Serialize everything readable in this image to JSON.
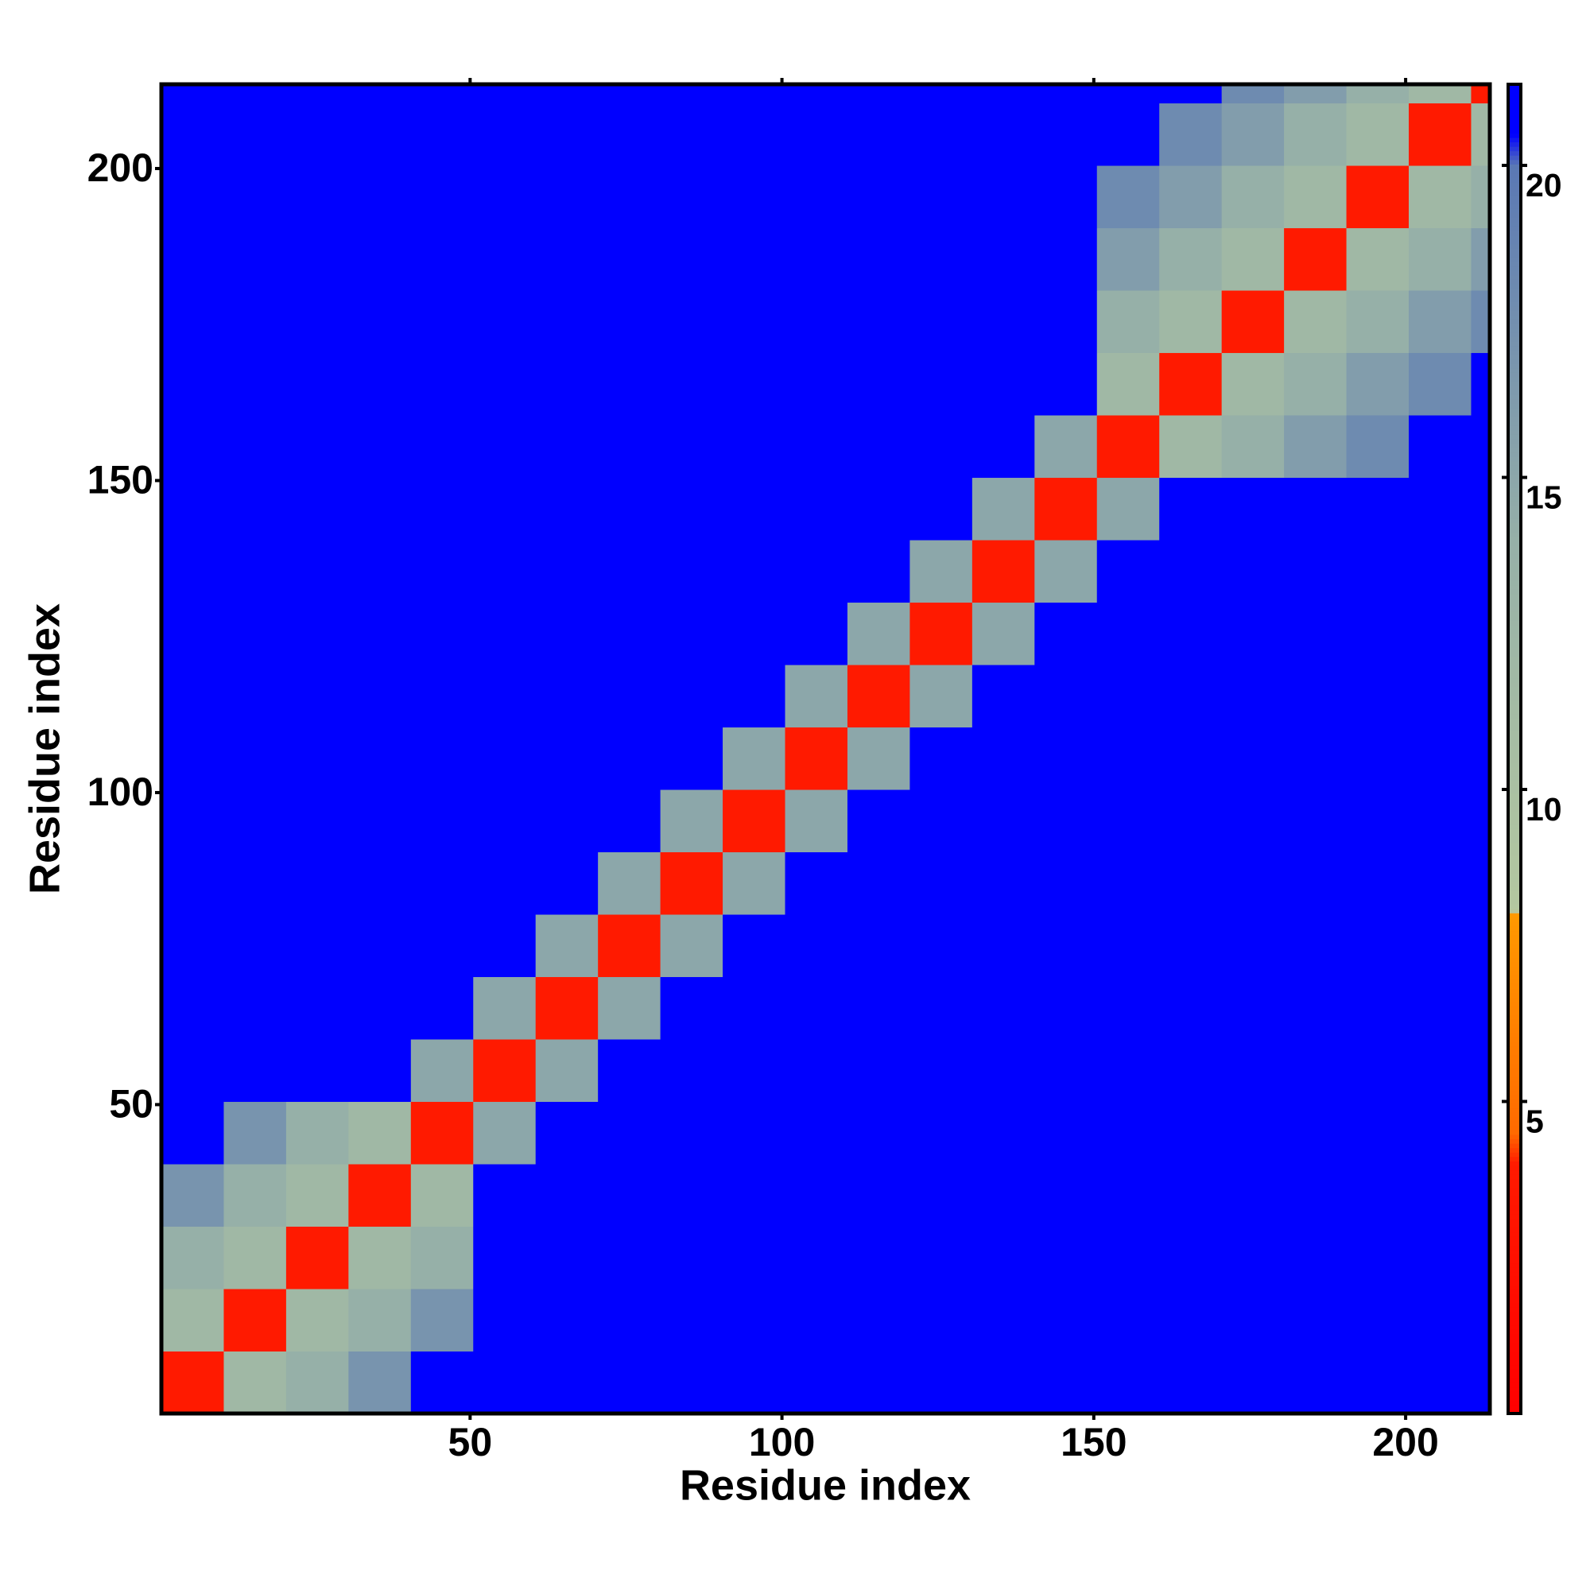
{
  "chart_data": {
    "type": "heatmap",
    "xlabel": "Residue index",
    "ylabel": "Residue index",
    "xbins": [
      0.5,
      10.5,
      20.5,
      30.5,
      40.5,
      50.5,
      60.5,
      70.5,
      80.5,
      90.5,
      100.5,
      110.5,
      120.5,
      130.5,
      140.5,
      150.5,
      160.5,
      170.5,
      180.5,
      190.5,
      200.5,
      210.5,
      213.5
    ],
    "ybins": [
      0.5,
      10.5,
      20.5,
      30.5,
      40.5,
      50.5,
      60.5,
      70.5,
      80.5,
      90.5,
      100.5,
      110.5,
      120.5,
      130.5,
      140.5,
      150.5,
      160.5,
      170.5,
      180.5,
      190.5,
      200.5,
      210.5,
      213.5
    ],
    "values": [
      [
        4,
        12,
        14,
        17,
        21,
        21,
        21,
        21,
        21,
        21,
        21,
        21,
        21,
        21,
        21,
        21,
        21,
        21,
        21,
        21,
        21,
        21
      ],
      [
        12,
        4,
        12,
        14,
        17,
        21,
        21,
        21,
        21,
        21,
        21,
        21,
        21,
        21,
        21,
        21,
        21,
        21,
        21,
        21,
        21,
        21
      ],
      [
        14,
        12,
        4,
        12,
        14,
        21,
        21,
        21,
        21,
        21,
        21,
        21,
        21,
        21,
        21,
        21,
        21,
        21,
        21,
        21,
        21,
        21
      ],
      [
        17,
        14,
        12,
        4,
        12,
        21,
        21,
        21,
        21,
        21,
        21,
        21,
        21,
        21,
        21,
        21,
        21,
        21,
        21,
        21,
        21,
        21
      ],
      [
        21,
        17,
        14,
        12,
        4,
        15,
        21,
        21,
        21,
        21,
        21,
        21,
        21,
        21,
        21,
        21,
        21,
        21,
        21,
        21,
        21,
        21
      ],
      [
        21,
        21,
        21,
        21,
        15,
        4,
        15,
        21,
        21,
        21,
        21,
        21,
        21,
        21,
        21,
        21,
        21,
        21,
        21,
        21,
        21,
        21
      ],
      [
        21,
        21,
        21,
        21,
        21,
        15,
        4,
        15,
        21,
        21,
        21,
        21,
        21,
        21,
        21,
        21,
        21,
        21,
        21,
        21,
        21,
        21
      ],
      [
        21,
        21,
        21,
        21,
        21,
        21,
        15,
        4,
        15,
        21,
        21,
        21,
        21,
        21,
        21,
        21,
        21,
        21,
        21,
        21,
        21,
        21
      ],
      [
        21,
        21,
        21,
        21,
        21,
        21,
        21,
        15,
        4,
        15,
        21,
        21,
        21,
        21,
        21,
        21,
        21,
        21,
        21,
        21,
        21,
        21
      ],
      [
        21,
        21,
        21,
        21,
        21,
        21,
        21,
        21,
        15,
        4,
        15,
        21,
        21,
        21,
        21,
        21,
        21,
        21,
        21,
        21,
        21,
        21
      ],
      [
        21,
        21,
        21,
        21,
        21,
        21,
        21,
        21,
        21,
        15,
        4,
        15,
        21,
        21,
        21,
        21,
        21,
        21,
        21,
        21,
        21,
        21
      ],
      [
        21,
        21,
        21,
        21,
        21,
        21,
        21,
        21,
        21,
        21,
        15,
        4,
        15,
        21,
        21,
        21,
        21,
        21,
        21,
        21,
        21,
        21
      ],
      [
        21,
        21,
        21,
        21,
        21,
        21,
        21,
        21,
        21,
        21,
        21,
        15,
        4,
        15,
        21,
        21,
        21,
        21,
        21,
        21,
        21,
        21
      ],
      [
        21,
        21,
        21,
        21,
        21,
        21,
        21,
        21,
        21,
        21,
        21,
        21,
        15,
        4,
        15,
        21,
        21,
        21,
        21,
        21,
        21,
        21
      ],
      [
        21,
        21,
        21,
        21,
        21,
        21,
        21,
        21,
        21,
        21,
        21,
        21,
        21,
        15,
        4,
        15,
        21,
        21,
        21,
        21,
        21,
        21
      ],
      [
        21,
        21,
        21,
        21,
        21,
        21,
        21,
        21,
        21,
        21,
        21,
        21,
        21,
        21,
        15,
        4,
        12,
        14,
        16,
        18,
        21,
        21
      ],
      [
        21,
        21,
        21,
        21,
        21,
        21,
        21,
        21,
        21,
        21,
        21,
        21,
        21,
        21,
        21,
        12,
        4,
        12,
        14,
        16,
        18,
        21
      ],
      [
        21,
        21,
        21,
        21,
        21,
        21,
        21,
        21,
        21,
        21,
        21,
        21,
        21,
        21,
        21,
        14,
        12,
        4,
        12,
        14,
        16,
        18
      ],
      [
        21,
        21,
        21,
        21,
        21,
        21,
        21,
        21,
        21,
        21,
        21,
        21,
        21,
        21,
        21,
        16,
        14,
        12,
        4,
        12,
        14,
        16
      ],
      [
        21,
        21,
        21,
        21,
        21,
        21,
        21,
        21,
        21,
        21,
        21,
        21,
        21,
        21,
        21,
        18,
        16,
        14,
        12,
        4,
        12,
        14
      ],
      [
        21,
        21,
        21,
        21,
        21,
        21,
        21,
        21,
        21,
        21,
        21,
        21,
        21,
        21,
        21,
        21,
        18,
        16,
        14,
        12,
        4,
        12
      ],
      [
        21,
        21,
        21,
        21,
        21,
        21,
        21,
        21,
        21,
        21,
        21,
        21,
        21,
        21,
        21,
        21,
        21,
        18,
        16,
        14,
        12,
        4
      ]
    ],
    "xlim": [
      0.5,
      213.5
    ],
    "ylim": [
      0.5,
      213.5
    ],
    "xticks": [
      50,
      100,
      150,
      200
    ],
    "yticks": [
      50,
      100,
      150,
      200
    ],
    "zlim": [
      0,
      21.3
    ],
    "zticks": [
      5,
      10,
      15,
      20
    ],
    "colorscale": [
      [
        0,
        "#ff0000"
      ],
      [
        4,
        "#ff1a00"
      ],
      [
        4.5,
        "#ff6a00"
      ],
      [
        8,
        "#ff9900"
      ],
      [
        8.06,
        "#b4c8a0"
      ],
      [
        14,
        "#96b0a8"
      ],
      [
        20,
        "#5a78b4"
      ],
      [
        20.5,
        "#0000ff"
      ],
      [
        21.3,
        "#0000ff"
      ]
    ]
  }
}
